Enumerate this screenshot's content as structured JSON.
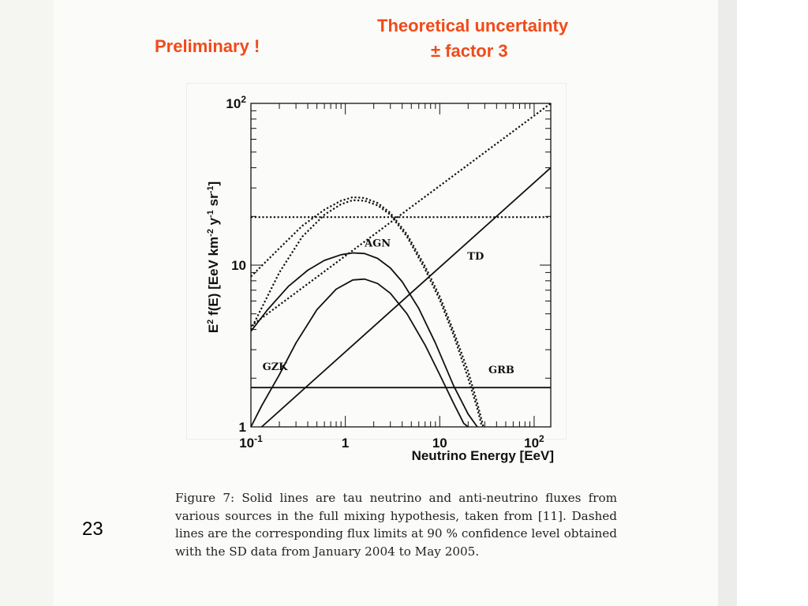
{
  "slide": {
    "preliminary": "Preliminary !",
    "uncertainty_line1": "Theoretical uncertainty",
    "uncertainty_line2": "± factor  3",
    "page_number": "23"
  },
  "caption": "Figure 7: Solid lines are tau neutrino and anti-neutrino fluxes from various sources in the full mixing hypothesis, taken from [11]. Dashed lines are the corresponding flux limits at 90 % confidence level obtained with the SD data from January 2004 to May 2005.",
  "colors": {
    "accent": "#f04a1a",
    "ink": "#111111"
  },
  "chart_data": {
    "type": "line",
    "title": "",
    "xlabel": "Neutrino Energy [EeV]",
    "ylabel_parts": {
      "e": "E",
      "two": "2",
      "body": " f(E) [EeV km",
      "m2": "-2",
      "y": " y",
      "m1a": "-1",
      "sr": " sr",
      "m1b": "-1",
      "end": "]"
    },
    "xscale": "log",
    "yscale": "log",
    "xlim": [
      0.1,
      150
    ],
    "ylim": [
      1,
      100
    ],
    "x_tick_labels": [
      {
        "value": 0.1,
        "base": "10",
        "exp": "-1"
      },
      {
        "value": 1,
        "base": "1",
        "exp": ""
      },
      {
        "value": 10,
        "base": "10",
        "exp": ""
      },
      {
        "value": 100,
        "base": "10",
        "exp": "2"
      }
    ],
    "y_tick_labels": [
      {
        "value": 1,
        "base": "1",
        "exp": ""
      },
      {
        "value": 10,
        "base": "10",
        "exp": ""
      },
      {
        "value": 100,
        "base": "10",
        "exp": "2"
      }
    ],
    "series": [
      {
        "name": "AGN",
        "style": "solid",
        "points": [
          [
            0.1,
            3.9
          ],
          [
            0.15,
            5.3
          ],
          [
            0.25,
            7.4
          ],
          [
            0.4,
            9.3
          ],
          [
            0.6,
            10.7
          ],
          [
            0.9,
            11.6
          ],
          [
            1.2,
            11.9
          ],
          [
            1.6,
            11.8
          ],
          [
            2.2,
            11.0
          ],
          [
            3.0,
            9.6
          ],
          [
            4.0,
            7.9
          ],
          [
            6.0,
            5.4
          ],
          [
            9.0,
            3.3
          ],
          [
            14.0,
            1.8
          ],
          [
            20.0,
            1.2
          ],
          [
            25.0,
            1.0
          ]
        ]
      },
      {
        "name": "GZK",
        "style": "solid",
        "points": [
          [
            0.1,
            1.0
          ],
          [
            0.13,
            1.35
          ],
          [
            0.2,
            2.1
          ],
          [
            0.3,
            3.3
          ],
          [
            0.5,
            5.3
          ],
          [
            0.8,
            7.1
          ],
          [
            1.2,
            8.1
          ],
          [
            1.6,
            8.2
          ],
          [
            2.2,
            7.7
          ],
          [
            3.0,
            6.7
          ],
          [
            4.5,
            5.0
          ],
          [
            7.0,
            3.2
          ],
          [
            10.0,
            2.1
          ],
          [
            14.0,
            1.4
          ],
          [
            18.0,
            1.05
          ],
          [
            20.0,
            1.0
          ]
        ]
      },
      {
        "name": "TD",
        "style": "solid",
        "points": [
          [
            0.13,
            1.0
          ],
          [
            150,
            40.0
          ]
        ]
      },
      {
        "name": "GRB",
        "style": "solid",
        "points": [
          [
            0.1,
            1.75
          ],
          [
            150,
            1.75
          ]
        ]
      },
      {
        "name": "",
        "style": "dotted",
        "points": [
          [
            0.1,
            4.2
          ],
          [
            150,
            100.0
          ]
        ]
      },
      {
        "name": "",
        "style": "dotted",
        "points": [
          [
            0.1,
            8.5
          ],
          [
            0.2,
            12.7
          ],
          [
            0.35,
            17.5
          ],
          [
            0.6,
            22.0
          ],
          [
            0.9,
            25.0
          ],
          [
            1.2,
            26.3
          ],
          [
            1.6,
            26.0
          ],
          [
            2.2,
            24.2
          ],
          [
            3.0,
            21.0
          ],
          [
            4.5,
            15.5
          ],
          [
            7.0,
            9.8
          ],
          [
            10.0,
            6.4
          ],
          [
            14.0,
            3.9
          ],
          [
            20.0,
            2.2
          ],
          [
            25.0,
            1.4
          ],
          [
            29.0,
            1.0
          ]
        ]
      },
      {
        "name": "",
        "style": "dotted",
        "points": [
          [
            0.1,
            4.0
          ],
          [
            0.2,
            9.0
          ],
          [
            0.35,
            15.0
          ],
          [
            0.6,
            20.5
          ],
          [
            0.9,
            23.8
          ],
          [
            1.2,
            25.2
          ],
          [
            1.6,
            25.0
          ],
          [
            2.2,
            23.4
          ],
          [
            3.0,
            20.5
          ],
          [
            4.5,
            15.0
          ],
          [
            7.0,
            9.4
          ],
          [
            10.0,
            6.1
          ],
          [
            14.0,
            3.7
          ],
          [
            20.0,
            2.0
          ],
          [
            25.0,
            1.3
          ],
          [
            28.0,
            1.0
          ]
        ]
      },
      {
        "name": "",
        "style": "dotted",
        "points": [
          [
            0.1,
            19.8
          ],
          [
            150,
            19.8
          ]
        ]
      }
    ],
    "labels": [
      {
        "text": "AGN",
        "x": 2.2,
        "y": 13.0
      },
      {
        "text": "TD",
        "x": 24.0,
        "y": 10.8
      },
      {
        "text": "GZK",
        "x": 0.18,
        "y": 2.25
      },
      {
        "text": "GRB",
        "x": 45.0,
        "y": 2.15
      }
    ],
    "grid": false,
    "legend": "none"
  }
}
